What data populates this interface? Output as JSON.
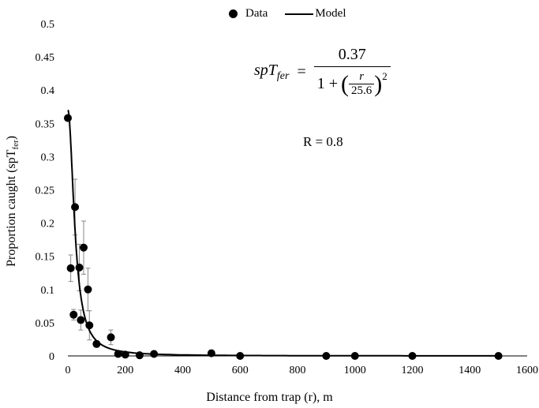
{
  "chart_data": {
    "type": "scatter",
    "xlabel": "Distance from trap (r), m",
    "ylabel_main": "Proportion caught (spT",
    "ylabel_sub": "fer",
    "ylabel_close": ")",
    "xlim": [
      0,
      1600
    ],
    "ylim": [
      0,
      0.5
    ],
    "xticks": [
      "0",
      "200",
      "400",
      "600",
      "800",
      "1000",
      "1200",
      "1400",
      "1600"
    ],
    "yticks": [
      "0",
      "0.05",
      "0.1",
      "0.15",
      "0.2",
      "0.25",
      "0.3",
      "0.35",
      "0.4",
      "0.45",
      "0.5"
    ],
    "legend": {
      "data_label": "Data",
      "model_label": "Model",
      "position": "top-center"
    },
    "series": [
      {
        "name": "Data",
        "kind": "points",
        "x": [
          0,
          10,
          20,
          25,
          40,
          45,
          55,
          70,
          75,
          100,
          150,
          175,
          200,
          250,
          300,
          500,
          600,
          900,
          1000,
          1200,
          1500
        ],
        "y": [
          0.358,
          0.132,
          0.062,
          0.224,
          0.133,
          0.054,
          0.163,
          0.1,
          0.046,
          0.018,
          0.028,
          0.003,
          0.002,
          0.001,
          0.003,
          0.004,
          0.0,
          0.0,
          0.0,
          0.0,
          0.0
        ],
        "err": [
          0.0,
          0.02,
          0.008,
          0.042,
          0.035,
          0.015,
          0.04,
          0.032,
          0.022,
          0.005,
          0.011,
          0.0,
          0.0,
          0.0,
          0.0,
          0.0,
          0.0,
          0.0,
          0.0,
          0.0,
          0.0
        ]
      },
      {
        "name": "Model",
        "kind": "line",
        "formula": "0.37 / (1 + (r/25.6)^2)",
        "a": 0.37,
        "r0": 25.6
      }
    ],
    "equation": {
      "lhs_main": "spT",
      "lhs_sub": "fer",
      "eq": "=",
      "numerator": "0.37",
      "denominator_prefix": "1 +",
      "inner_num": "r",
      "inner_den": "25.6",
      "exponent": "2"
    },
    "annotation": "R = 0.8",
    "grid": false
  }
}
